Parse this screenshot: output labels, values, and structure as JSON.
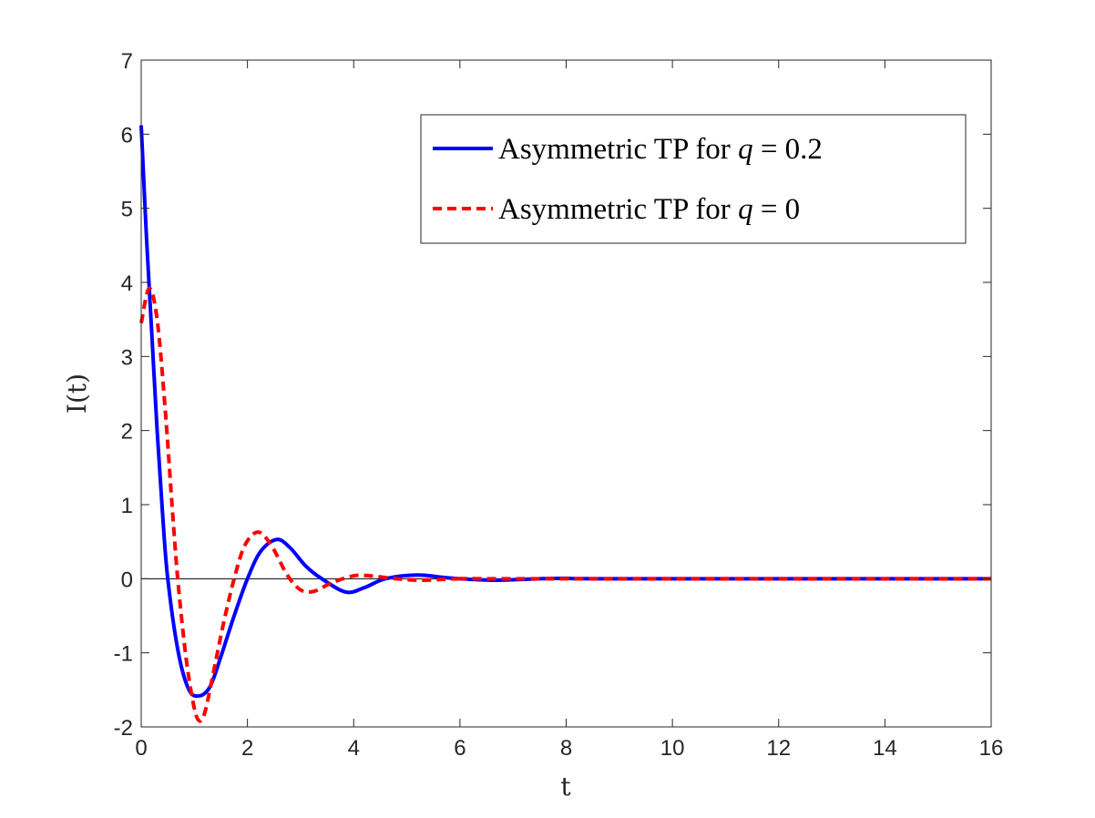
{
  "chart_data": {
    "type": "line",
    "title": "",
    "xlabel": "t",
    "ylabel": "I(t)",
    "xlim": [
      0,
      16
    ],
    "ylim": [
      -2,
      7
    ],
    "xticks": [
      "0",
      "2",
      "4",
      "6",
      "8",
      "10",
      "12",
      "14",
      "16"
    ],
    "yticks": [
      "-2",
      "-1",
      "0",
      "1",
      "2",
      "3",
      "4",
      "5",
      "6",
      "7"
    ],
    "legend_placement": "top-right",
    "series": [
      {
        "name": "Asymmetric TP for q = 0.2",
        "label_text": "Asymmetric TP for ",
        "label_var": "q",
        "label_value": "= 0.2",
        "color": "#0000ff",
        "style": "solid",
        "x": [
          0,
          0.1,
          0.2,
          0.3,
          0.4,
          0.5,
          0.7,
          0.9,
          1.1,
          1.3,
          1.5,
          1.75,
          2.0,
          2.25,
          2.55,
          2.8,
          3.1,
          3.4,
          3.85,
          4.2,
          4.6,
          5.2,
          5.8,
          6.6,
          7.5,
          8,
          9,
          16
        ],
        "y": [
          6.12,
          4.6,
          3.3,
          2.0,
          0.9,
          0.0,
          -1.0,
          -1.5,
          -1.58,
          -1.45,
          -1.05,
          -0.5,
          0.0,
          0.37,
          0.53,
          0.42,
          0.17,
          0.0,
          -0.18,
          -0.12,
          0.0,
          0.05,
          0.01,
          -0.02,
          0.0,
          0.005,
          0,
          0
        ]
      },
      {
        "name": "Asymmetric TP for q = 0",
        "label_text": "Asymmetric TP for ",
        "label_var": "q",
        "label_value": "= 0",
        "color": "#ff0000",
        "style": "dashed",
        "x": [
          0,
          0.15,
          0.3,
          0.45,
          0.6,
          0.7,
          0.85,
          1.0,
          1.1,
          1.2,
          1.35,
          1.55,
          1.75,
          1.95,
          2.2,
          2.45,
          2.75,
          3.0,
          3.25,
          3.6,
          4.0,
          4.3,
          4.8,
          5.3,
          6,
          7,
          16
        ],
        "y": [
          3.45,
          3.92,
          3.5,
          2.3,
          0.8,
          -0.1,
          -1.1,
          -1.75,
          -1.92,
          -1.8,
          -1.3,
          -0.6,
          0.0,
          0.45,
          0.63,
          0.45,
          0.05,
          -0.15,
          -0.17,
          -0.05,
          0.04,
          0.04,
          0.0,
          -0.02,
          0,
          0,
          0
        ]
      }
    ]
  }
}
